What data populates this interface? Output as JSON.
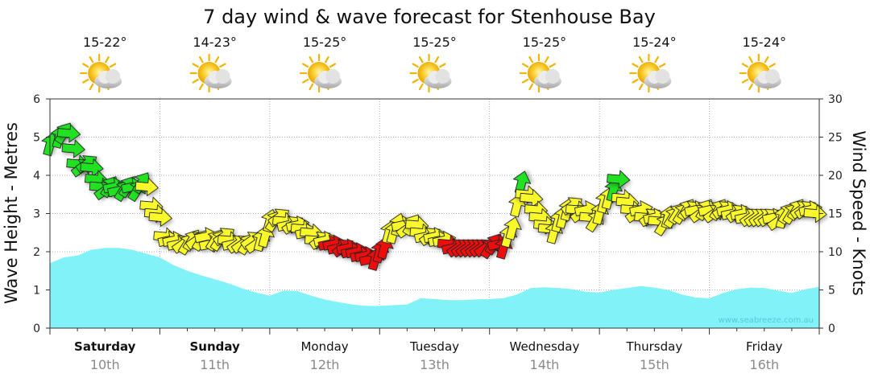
{
  "chart_data": {
    "type": "area",
    "title": "7 day wind & wave forecast for Stenhouse Bay",
    "ylabel_left": "Wave Height - Metres",
    "ylabel_right": "Wind Speed - Knots",
    "ylim_left": [
      0,
      6
    ],
    "ylim_right": [
      0,
      30
    ],
    "yticks_left": [
      "0",
      "1",
      "2",
      "3",
      "4",
      "5",
      "6"
    ],
    "yticks_right": [
      "0",
      "5",
      "10",
      "15",
      "20",
      "25",
      "30"
    ],
    "grid": true,
    "days": [
      {
        "name": "Saturday",
        "date": "10th",
        "temp": "15-22°",
        "weekend": true
      },
      {
        "name": "Sunday",
        "date": "11th",
        "temp": "14-23°",
        "weekend": true
      },
      {
        "name": "Monday",
        "date": "12th",
        "temp": "15-25°",
        "weekend": false
      },
      {
        "name": "Tuesday",
        "date": "13th",
        "temp": "15-25°",
        "weekend": false
      },
      {
        "name": "Wednesday",
        "date": "14th",
        "temp": "15-25°",
        "weekend": false
      },
      {
        "name": "Thursday",
        "date": "15th",
        "temp": "15-24°",
        "weekend": false
      },
      {
        "name": "Friday",
        "date": "16th",
        "temp": "15-24°",
        "weekend": false
      }
    ],
    "weather_icon": "sun-behind-cloud-icon",
    "x_hours_range": [
      0,
      168
    ],
    "wave_series": {
      "name": "Wave Height",
      "color": "#80f2f8",
      "points": [
        [
          0,
          1.7
        ],
        [
          3,
          1.85
        ],
        [
          6,
          1.9
        ],
        [
          9,
          2.05
        ],
        [
          12,
          2.1
        ],
        [
          15,
          2.1
        ],
        [
          18,
          2.05
        ],
        [
          21,
          1.95
        ],
        [
          24,
          1.85
        ],
        [
          27,
          1.65
        ],
        [
          30,
          1.5
        ],
        [
          33,
          1.38
        ],
        [
          36,
          1.28
        ],
        [
          39,
          1.17
        ],
        [
          42,
          1.04
        ],
        [
          45,
          0.93
        ],
        [
          48,
          0.85
        ],
        [
          51,
          0.98
        ],
        [
          54,
          0.97
        ],
        [
          57,
          0.85
        ],
        [
          60,
          0.75
        ],
        [
          63,
          0.68
        ],
        [
          66,
          0.62
        ],
        [
          69,
          0.58
        ],
        [
          72,
          0.58
        ],
        [
          75,
          0.6
        ],
        [
          78,
          0.62
        ],
        [
          81,
          0.78
        ],
        [
          84,
          0.76
        ],
        [
          87,
          0.73
        ],
        [
          90,
          0.73
        ],
        [
          93,
          0.75
        ],
        [
          96,
          0.76
        ],
        [
          99,
          0.78
        ],
        [
          102,
          0.88
        ],
        [
          105,
          1.05
        ],
        [
          108,
          1.07
        ],
        [
          111,
          1.05
        ],
        [
          114,
          1.02
        ],
        [
          117,
          0.95
        ],
        [
          120,
          0.93
        ],
        [
          123,
          1.0
        ],
        [
          126,
          1.05
        ],
        [
          129,
          1.1
        ],
        [
          132,
          1.06
        ],
        [
          135,
          1.0
        ],
        [
          138,
          0.88
        ],
        [
          141,
          0.8
        ],
        [
          144,
          0.78
        ],
        [
          147,
          0.92
        ],
        [
          150,
          1.02
        ],
        [
          153,
          1.06
        ],
        [
          156,
          1.05
        ],
        [
          159,
          0.98
        ],
        [
          162,
          0.92
        ],
        [
          165,
          1.02
        ],
        [
          168,
          1.08
        ]
      ]
    },
    "wind_series": {
      "name": "Wind Speed",
      "legend_colors": {
        "green": "#22e022",
        "yellow": "#f8f82a",
        "red": "#ee0f0f"
      },
      "points": [
        [
          0,
          24,
          "green"
        ],
        [
          2,
          25,
          "green"
        ],
        [
          3,
          25.5,
          "green"
        ],
        [
          4,
          25.5,
          "green"
        ],
        [
          5,
          23.5,
          "green"
        ],
        [
          6,
          21.5,
          "green"
        ],
        [
          7,
          21,
          "green"
        ],
        [
          8,
          21.5,
          "green"
        ],
        [
          9,
          21,
          "green"
        ],
        [
          10,
          19.5,
          "green"
        ],
        [
          11,
          18.5,
          "green"
        ],
        [
          12,
          18,
          "green"
        ],
        [
          13,
          18.5,
          "green"
        ],
        [
          14,
          18.5,
          "green"
        ],
        [
          15,
          18,
          "green"
        ],
        [
          16,
          18,
          "green"
        ],
        [
          17,
          18.5,
          "green"
        ],
        [
          18,
          18.5,
          "green"
        ],
        [
          19,
          18,
          "green"
        ],
        [
          20,
          19,
          "green"
        ],
        [
          21,
          18.5,
          "yellow"
        ],
        [
          22,
          16,
          "yellow"
        ],
        [
          23,
          15,
          "yellow"
        ],
        [
          24,
          14.5,
          "yellow"
        ],
        [
          25,
          12,
          "yellow"
        ],
        [
          26,
          11.5,
          "yellow"
        ],
        [
          27,
          11.5,
          "yellow"
        ],
        [
          28,
          11,
          "yellow"
        ],
        [
          29,
          11,
          "yellow"
        ],
        [
          30,
          11,
          "yellow"
        ],
        [
          31,
          11.5,
          "yellow"
        ],
        [
          32,
          11.5,
          "yellow"
        ],
        [
          33,
          11.5,
          "yellow"
        ],
        [
          34,
          12,
          "yellow"
        ],
        [
          35,
          11,
          "yellow"
        ],
        [
          36,
          11.5,
          "yellow"
        ],
        [
          37,
          11.5,
          "yellow"
        ],
        [
          38,
          12,
          "yellow"
        ],
        [
          39,
          11.5,
          "yellow"
        ],
        [
          40,
          11,
          "yellow"
        ],
        [
          41,
          11,
          "yellow"
        ],
        [
          42,
          11,
          "yellow"
        ],
        [
          43,
          11,
          "yellow"
        ],
        [
          44,
          11.5,
          "yellow"
        ],
        [
          45,
          11,
          "yellow"
        ],
        [
          46,
          11.5,
          "yellow"
        ],
        [
          47,
          12,
          "yellow"
        ],
        [
          48,
          14,
          "yellow"
        ],
        [
          49,
          14,
          "yellow"
        ],
        [
          50,
          14.5,
          "yellow"
        ],
        [
          51,
          14,
          "yellow"
        ],
        [
          52,
          13.5,
          "yellow"
        ],
        [
          53,
          13.5,
          "yellow"
        ],
        [
          54,
          13.5,
          "yellow"
        ],
        [
          55,
          13,
          "yellow"
        ],
        [
          56,
          12.5,
          "yellow"
        ],
        [
          57,
          12.5,
          "yellow"
        ],
        [
          58,
          11.5,
          "yellow"
        ],
        [
          59,
          11.5,
          "yellow"
        ],
        [
          60,
          11.5,
          "yellow"
        ],
        [
          61,
          11,
          "red"
        ],
        [
          62,
          11,
          "red"
        ],
        [
          63,
          10.5,
          "red"
        ],
        [
          64,
          10.5,
          "red"
        ],
        [
          65,
          10.5,
          "red"
        ],
        [
          66,
          10,
          "red"
        ],
        [
          67,
          10,
          "red"
        ],
        [
          68,
          9.5,
          "red"
        ],
        [
          69,
          9.5,
          "red"
        ],
        [
          70,
          9,
          "red"
        ],
        [
          71,
          9,
          "red"
        ],
        [
          72,
          10,
          "red"
        ],
        [
          73,
          10.5,
          "red"
        ],
        [
          74,
          12.5,
          "yellow"
        ],
        [
          75,
          12.5,
          "yellow"
        ],
        [
          76,
          13.5,
          "yellow"
        ],
        [
          77,
          13.5,
          "yellow"
        ],
        [
          78,
          13,
          "yellow"
        ],
        [
          79,
          13.5,
          "yellow"
        ],
        [
          80,
          13.5,
          "yellow"
        ],
        [
          81,
          12.5,
          "yellow"
        ],
        [
          82,
          12,
          "yellow"
        ],
        [
          83,
          12,
          "yellow"
        ],
        [
          84,
          12,
          "yellow"
        ],
        [
          85,
          11.5,
          "yellow"
        ],
        [
          86,
          11.5,
          "yellow"
        ],
        [
          87,
          11,
          "red"
        ],
        [
          88,
          10.5,
          "red"
        ],
        [
          89,
          10.5,
          "red"
        ],
        [
          90,
          10.5,
          "red"
        ],
        [
          91,
          10.5,
          "red"
        ],
        [
          92,
          10.5,
          "red"
        ],
        [
          93,
          10.5,
          "red"
        ],
        [
          94,
          10.5,
          "red"
        ],
        [
          95,
          10.5,
          "red"
        ],
        [
          96,
          10.5,
          "red"
        ],
        [
          97,
          11,
          "red"
        ],
        [
          98,
          11,
          "red"
        ],
        [
          99,
          10.5,
          "red"
        ],
        [
          100,
          12,
          "yellow"
        ],
        [
          101,
          13,
          "yellow"
        ],
        [
          102,
          16,
          "yellow"
        ],
        [
          103,
          19,
          "green"
        ],
        [
          104,
          17.5,
          "yellow"
        ],
        [
          105,
          17,
          "yellow"
        ],
        [
          106,
          15.5,
          "yellow"
        ],
        [
          107,
          14.5,
          "yellow"
        ],
        [
          108,
          13.5,
          "yellow"
        ],
        [
          109,
          13,
          "yellow"
        ],
        [
          110,
          12.5,
          "yellow"
        ],
        [
          111,
          14,
          "yellow"
        ],
        [
          112,
          14.5,
          "yellow"
        ],
        [
          113,
          15.5,
          "yellow"
        ],
        [
          114,
          16,
          "yellow"
        ],
        [
          115,
          15.5,
          "yellow"
        ],
        [
          116,
          15,
          "yellow"
        ],
        [
          117,
          15.5,
          "yellow"
        ],
        [
          118,
          14.5,
          "yellow"
        ],
        [
          119,
          14,
          "yellow"
        ],
        [
          120,
          15,
          "yellow"
        ],
        [
          121,
          16.5,
          "yellow"
        ],
        [
          122,
          17,
          "yellow"
        ],
        [
          123,
          18,
          "green"
        ],
        [
          124,
          19.5,
          "green"
        ],
        [
          125,
          17,
          "yellow"
        ],
        [
          126,
          16.5,
          "yellow"
        ],
        [
          127,
          15.5,
          "yellow"
        ],
        [
          128,
          15,
          "yellow"
        ],
        [
          129,
          15.5,
          "yellow"
        ],
        [
          130,
          14.5,
          "yellow"
        ],
        [
          131,
          14.5,
          "yellow"
        ],
        [
          132,
          14.5,
          "yellow"
        ],
        [
          133,
          14,
          "yellow"
        ],
        [
          134,
          13.5,
          "yellow"
        ],
        [
          135,
          14.5,
          "yellow"
        ],
        [
          136,
          14.5,
          "yellow"
        ],
        [
          137,
          15,
          "yellow"
        ],
        [
          138,
          15,
          "yellow"
        ],
        [
          139,
          15.5,
          "yellow"
        ],
        [
          140,
          15.5,
          "yellow"
        ],
        [
          141,
          15.5,
          "yellow"
        ],
        [
          142,
          15,
          "yellow"
        ],
        [
          143,
          15.5,
          "yellow"
        ],
        [
          144,
          15.5,
          "yellow"
        ],
        [
          145,
          15,
          "yellow"
        ],
        [
          146,
          15.5,
          "yellow"
        ],
        [
          147,
          15.5,
          "yellow"
        ],
        [
          148,
          15.5,
          "yellow"
        ],
        [
          149,
          15,
          "yellow"
        ],
        [
          150,
          15,
          "yellow"
        ],
        [
          151,
          15,
          "yellow"
        ],
        [
          152,
          14.5,
          "yellow"
        ],
        [
          153,
          14.5,
          "yellow"
        ],
        [
          154,
          14.5,
          "yellow"
        ],
        [
          155,
          14.5,
          "yellow"
        ],
        [
          156,
          14.5,
          "yellow"
        ],
        [
          157,
          14.5,
          "yellow"
        ],
        [
          158,
          14.5,
          "yellow"
        ],
        [
          159,
          14,
          "yellow"
        ],
        [
          160,
          14.5,
          "yellow"
        ],
        [
          161,
          15,
          "yellow"
        ],
        [
          162,
          15,
          "yellow"
        ],
        [
          163,
          15.5,
          "yellow"
        ],
        [
          164,
          15.5,
          "yellow"
        ],
        [
          165,
          15.5,
          "yellow"
        ],
        [
          166,
          15.5,
          "yellow"
        ],
        [
          167,
          15,
          "yellow"
        ]
      ]
    },
    "watermark": "www.seabreeze.com.au"
  }
}
